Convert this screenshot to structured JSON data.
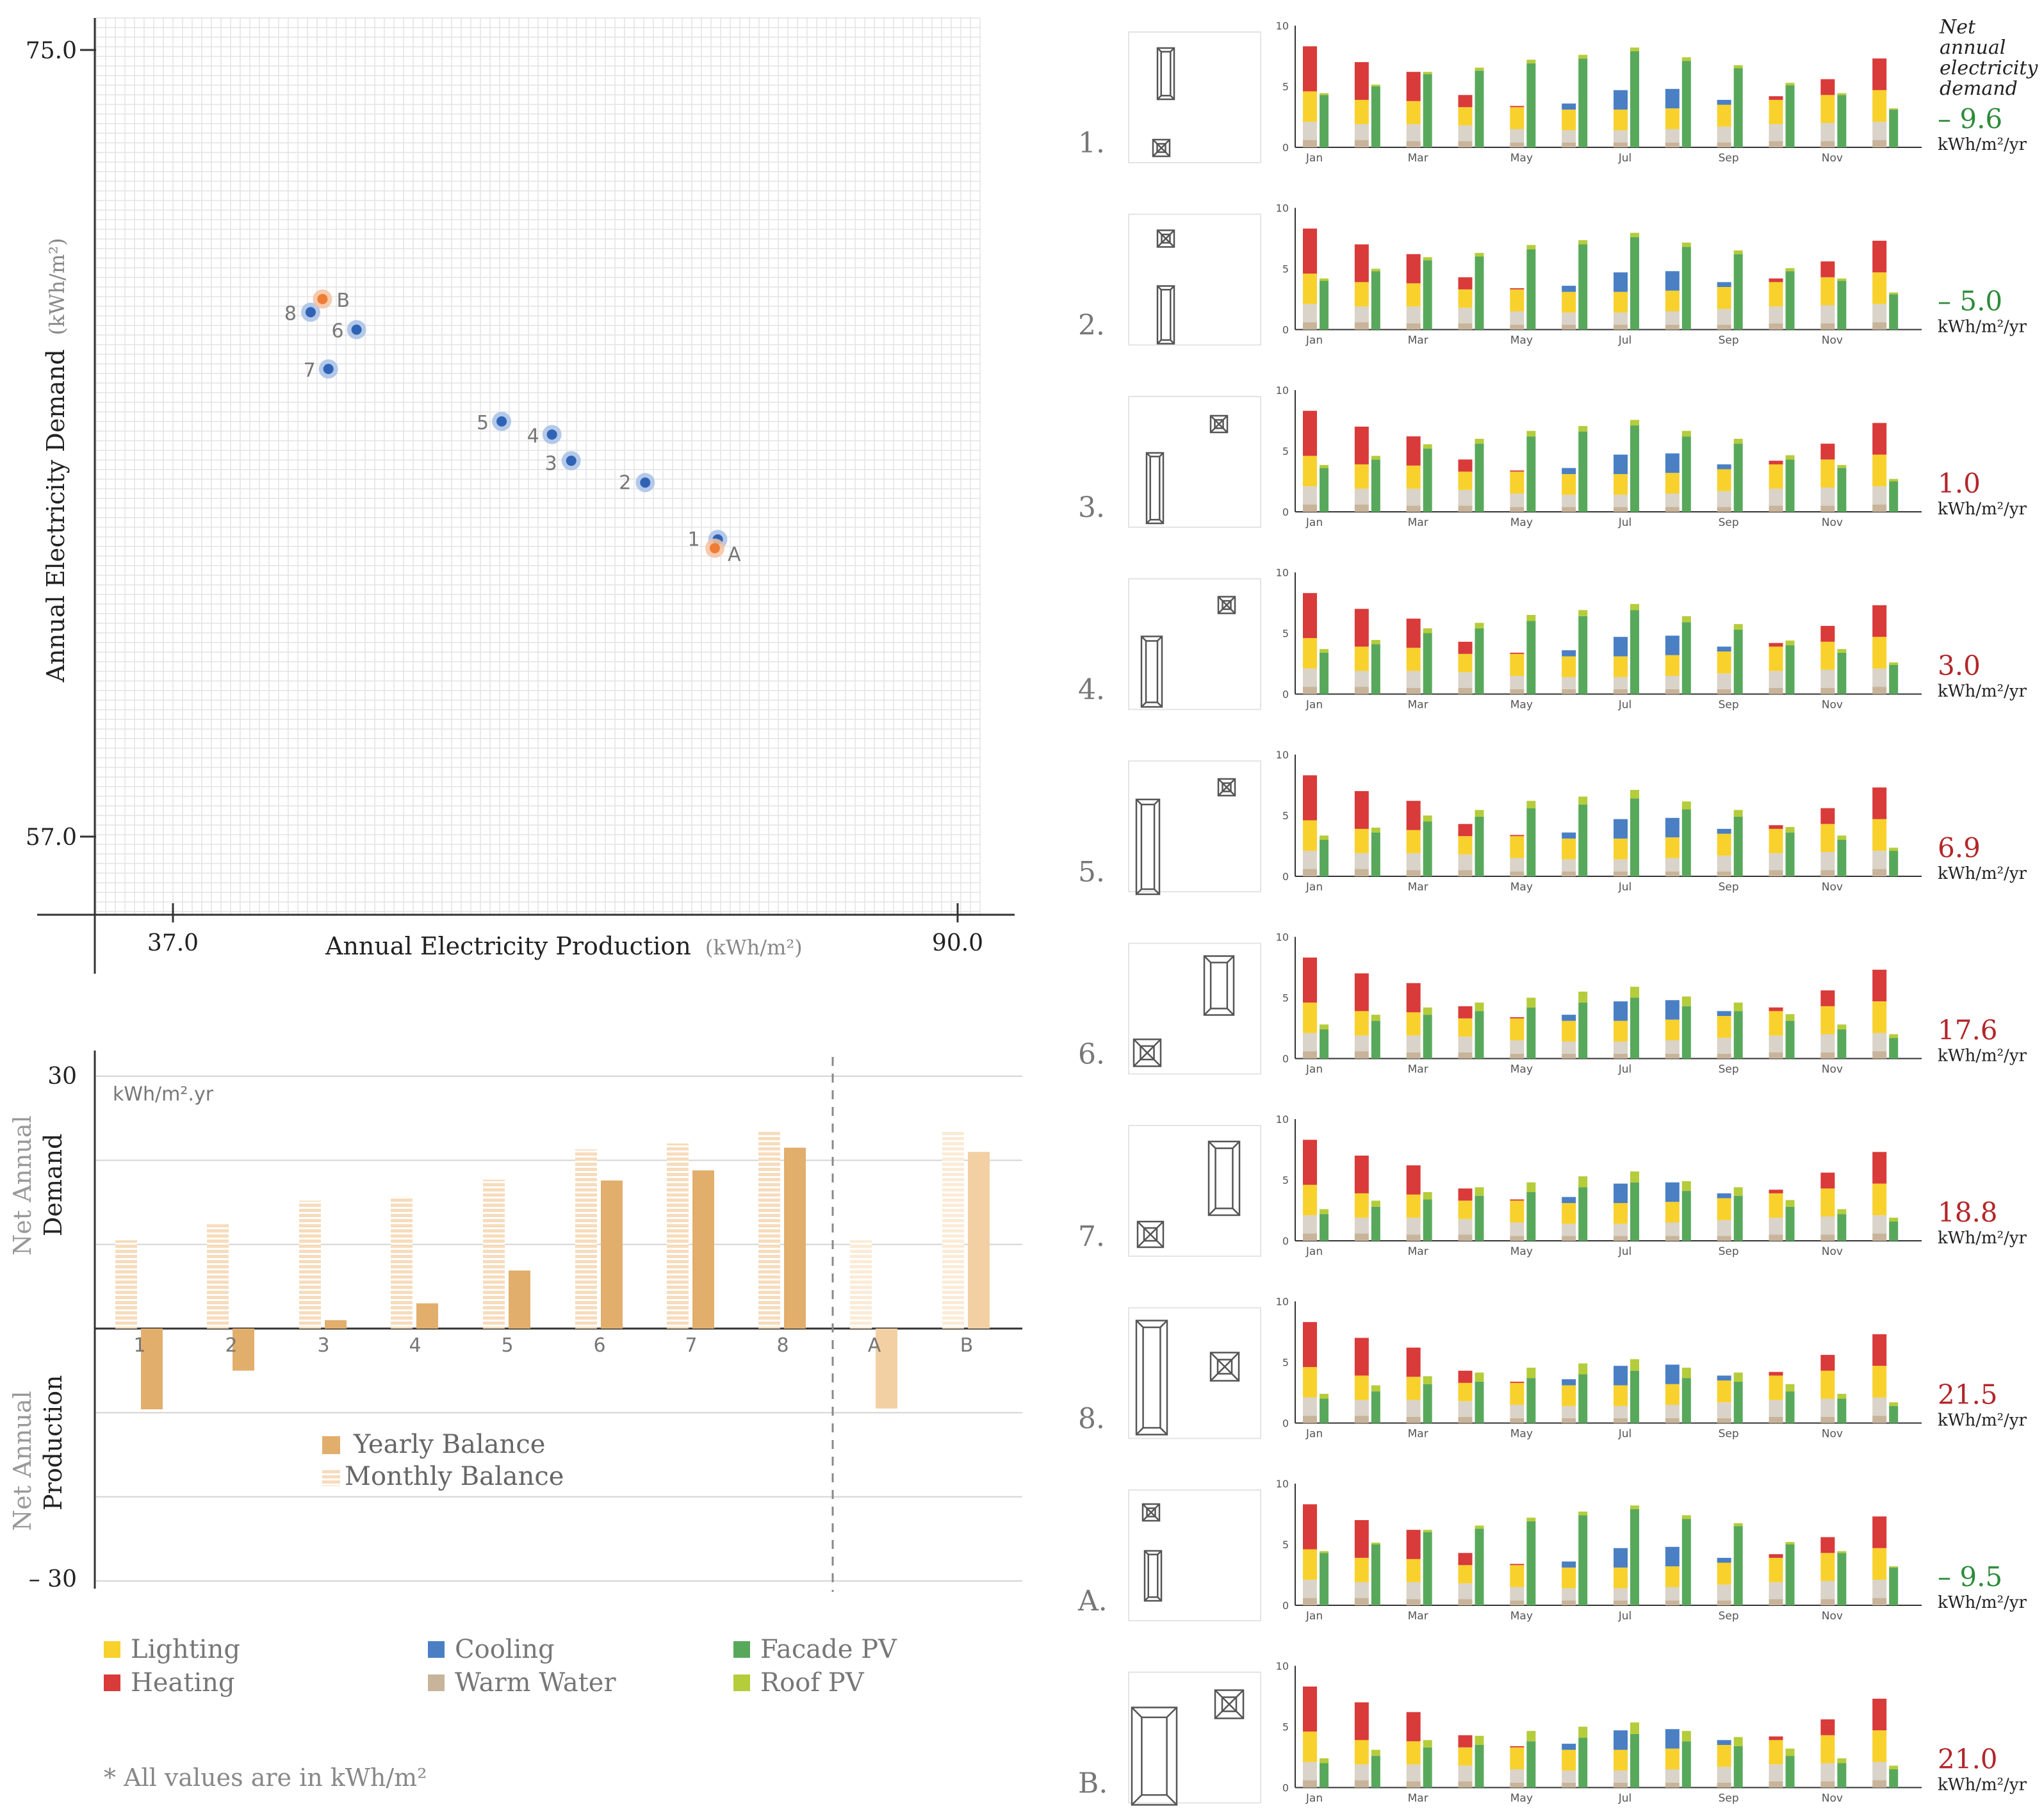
{
  "colors": {
    "lighting": "#f8d12d",
    "heating": "#d93a3a",
    "cooling": "#4a7fc4",
    "warm_water": "#c8b49a",
    "facade_pv": "#58a85c",
    "roof_pv": "#b5cc3b",
    "yearly": "#e2ae6b",
    "monthly": "#f3d0a4",
    "green_text": "#2e8b3a",
    "red_text": "#b3262a",
    "point_blue": "#2f63b5",
    "point_orange": "#ef7d36"
  },
  "chart_data": [
    {
      "type": "scatter",
      "title": "",
      "xlabel": "Annual Electricity Production",
      "xlabel_unit": "(kWh/m²)",
      "ylabel": "Annual Electricity Demand",
      "ylabel_unit": "(kWh/m²)",
      "xlim": [
        37.0,
        90.0
      ],
      "ylim": [
        57.0,
        75.0
      ],
      "x_ticks": [
        "37.0",
        "90.0"
      ],
      "y_ticks": [
        "75.0",
        "57.0"
      ],
      "grid": true,
      "points": [
        {
          "label": "1",
          "x": 73.8,
          "y": 63.8,
          "series": "variant"
        },
        {
          "label": "2",
          "x": 68.9,
          "y": 65.1,
          "series": "variant"
        },
        {
          "label": "3",
          "x": 63.9,
          "y": 65.6,
          "series": "variant"
        },
        {
          "label": "4",
          "x": 62.6,
          "y": 66.2,
          "series": "variant"
        },
        {
          "label": "5",
          "x": 59.2,
          "y": 66.5,
          "series": "variant"
        },
        {
          "label": "6",
          "x": 49.4,
          "y": 68.6,
          "series": "variant"
        },
        {
          "label": "7",
          "x": 47.5,
          "y": 67.7,
          "series": "variant"
        },
        {
          "label": "8",
          "x": 46.3,
          "y": 69.0,
          "series": "variant"
        },
        {
          "label": "A",
          "x": 73.6,
          "y": 63.6,
          "series": "reference"
        },
        {
          "label": "B",
          "x": 47.1,
          "y": 69.3,
          "series": "reference"
        }
      ]
    },
    {
      "type": "bar",
      "title": "kWh/m².yr",
      "ylim": [
        -30,
        30
      ],
      "y_ticks": [
        "30",
        "– 30"
      ],
      "ylabel_top": [
        "Net Annual",
        "Demand"
      ],
      "ylabel_bottom": [
        "Net Annual",
        "Production"
      ],
      "categories": [
        "1",
        "2",
        "3",
        "4",
        "5",
        "6",
        "7",
        "8",
        "A",
        "B"
      ],
      "series": [
        {
          "name": "Monthly Balance",
          "values": [
            10.5,
            12.4,
            15.2,
            15.7,
            17.7,
            21.3,
            22.0,
            23.5,
            10.5,
            23.5
          ]
        },
        {
          "name": "Yearly Balance",
          "values": [
            -9.6,
            -5.0,
            1.0,
            3.0,
            6.9,
            17.6,
            18.8,
            21.5,
            -9.5,
            21.0
          ]
        }
      ],
      "legend": [
        "Yearly Balance",
        "Monthly Balance"
      ]
    },
    {
      "type": "bar",
      "stacked": true,
      "months": [
        "Jan",
        "Feb",
        "Mar",
        "Apr",
        "May",
        "Jun",
        "Jul",
        "Aug",
        "Sep",
        "Oct",
        "Nov",
        "Dec"
      ],
      "month_labels": [
        "Jan",
        "Mar",
        "May",
        "Jul",
        "Sep",
        "Nov"
      ],
      "y_ticks": [
        "0",
        "5",
        "10"
      ],
      "ylim": [
        0,
        10
      ],
      "demand_base": {
        "warm_water": [
          0.6,
          0.6,
          0.5,
          0.5,
          0.4,
          0.4,
          0.4,
          0.4,
          0.4,
          0.5,
          0.5,
          0.6
        ],
        "lighting_gray": [
          1.5,
          1.3,
          1.4,
          1.3,
          1.1,
          1.0,
          1.0,
          1.1,
          1.3,
          1.4,
          1.5,
          1.5
        ],
        "lighting": [
          2.5,
          2.0,
          1.9,
          1.5,
          1.8,
          1.7,
          1.7,
          1.7,
          1.8,
          2.0,
          2.3,
          2.6
        ],
        "cooling": [
          0,
          0,
          0,
          0,
          0,
          0.5,
          1.6,
          1.6,
          0.4,
          0,
          0,
          0
        ],
        "heating": [
          3.7,
          3.1,
          2.4,
          1.0,
          0.1,
          0,
          0,
          0,
          0,
          0.3,
          1.3,
          2.6
        ]
      },
      "rows": [
        {
          "label": "1.",
          "value": "– 9.6",
          "unit": "kWh/m²/yr",
          "facade": [
            4.3,
            5.0,
            6.0,
            6.3,
            6.9,
            7.3,
            7.9,
            7.1,
            6.5,
            5.1,
            4.3,
            3.1
          ],
          "roof": [
            0.15,
            0.15,
            0.2,
            0.25,
            0.3,
            0.3,
            0.3,
            0.3,
            0.25,
            0.2,
            0.15,
            0.1
          ],
          "heading": [
            "Net",
            "annual",
            "electricity",
            "demand"
          ]
        },
        {
          "label": "2.",
          "value": "– 5.0",
          "unit": "kWh/m²/yr",
          "facade": [
            4.0,
            4.8,
            5.7,
            6.0,
            6.6,
            7.0,
            7.6,
            6.8,
            6.2,
            4.8,
            4.0,
            2.9
          ],
          "roof": [
            0.2,
            0.2,
            0.25,
            0.3,
            0.35,
            0.35,
            0.35,
            0.35,
            0.3,
            0.25,
            0.2,
            0.15
          ]
        },
        {
          "label": "3.",
          "value": "1.0",
          "unit": "kWh/m²/yr",
          "facade": [
            3.6,
            4.3,
            5.2,
            5.6,
            6.2,
            6.6,
            7.1,
            6.2,
            5.6,
            4.3,
            3.6,
            2.5
          ],
          "roof": [
            0.25,
            0.3,
            0.35,
            0.4,
            0.45,
            0.45,
            0.45,
            0.45,
            0.4,
            0.35,
            0.25,
            0.2
          ]
        },
        {
          "label": "4.",
          "value": "3.0",
          "unit": "kWh/m²/yr",
          "facade": [
            3.4,
            4.1,
            5.0,
            5.4,
            6.0,
            6.4,
            6.9,
            5.9,
            5.3,
            4.0,
            3.4,
            2.4
          ],
          "roof": [
            0.3,
            0.35,
            0.4,
            0.45,
            0.5,
            0.5,
            0.5,
            0.5,
            0.45,
            0.4,
            0.3,
            0.2
          ]
        },
        {
          "label": "5.",
          "value": "6.9",
          "unit": "kWh/m²/yr",
          "facade": [
            3.0,
            3.6,
            4.5,
            4.9,
            5.6,
            5.9,
            6.4,
            5.5,
            4.9,
            3.6,
            3.0,
            2.1
          ],
          "roof": [
            0.35,
            0.4,
            0.5,
            0.55,
            0.6,
            0.65,
            0.7,
            0.65,
            0.55,
            0.45,
            0.35,
            0.25
          ]
        },
        {
          "label": "6.",
          "value": "17.6",
          "unit": "kWh/m²/yr",
          "facade": [
            2.4,
            3.1,
            3.6,
            3.9,
            4.2,
            4.6,
            5.0,
            4.3,
            3.9,
            3.1,
            2.4,
            1.7
          ],
          "roof": [
            0.4,
            0.5,
            0.6,
            0.7,
            0.8,
            0.9,
            0.9,
            0.8,
            0.7,
            0.55,
            0.4,
            0.3
          ]
        },
        {
          "label": "7.",
          "value": "18.8",
          "unit": "kWh/m²/yr",
          "facade": [
            2.2,
            2.8,
            3.4,
            3.7,
            4.0,
            4.4,
            4.8,
            4.1,
            3.7,
            2.8,
            2.2,
            1.6
          ],
          "roof": [
            0.4,
            0.5,
            0.6,
            0.7,
            0.8,
            0.9,
            0.9,
            0.8,
            0.7,
            0.55,
            0.4,
            0.3
          ]
        },
        {
          "label": "8.",
          "value": "21.5",
          "unit": "kWh/m²/yr",
          "facade": [
            2.0,
            2.6,
            3.2,
            3.4,
            3.7,
            4.0,
            4.3,
            3.7,
            3.4,
            2.6,
            2.0,
            1.4
          ],
          "roof": [
            0.4,
            0.5,
            0.65,
            0.75,
            0.85,
            0.9,
            0.95,
            0.85,
            0.75,
            0.6,
            0.4,
            0.3
          ]
        },
        {
          "label": "A.",
          "value": "– 9.5",
          "unit": "kWh/m²/yr",
          "facade": [
            4.3,
            5.0,
            6.0,
            6.3,
            6.9,
            7.4,
            7.9,
            7.1,
            6.5,
            5.0,
            4.3,
            3.1
          ],
          "roof": [
            0.15,
            0.15,
            0.2,
            0.25,
            0.3,
            0.3,
            0.3,
            0.3,
            0.25,
            0.2,
            0.15,
            0.1
          ]
        },
        {
          "label": "B.",
          "value": "21.0",
          "unit": "kWh/m²/yr",
          "facade": [
            2.0,
            2.6,
            3.3,
            3.5,
            3.8,
            4.1,
            4.4,
            3.8,
            3.4,
            2.6,
            2.0,
            1.5
          ],
          "roof": [
            0.4,
            0.5,
            0.6,
            0.75,
            0.85,
            0.9,
            0.95,
            0.85,
            0.75,
            0.6,
            0.4,
            0.3
          ]
        }
      ]
    }
  ],
  "legend": {
    "items": [
      {
        "name": "Lighting",
        "color_key": "lighting"
      },
      {
        "name": "Cooling",
        "color_key": "cooling"
      },
      {
        "name": "Facade PV",
        "color_key": "facade_pv"
      },
      {
        "name": "Heating",
        "color_key": "heating"
      },
      {
        "name": "Warm Water",
        "color_key": "warm_water"
      },
      {
        "name": "Roof PV",
        "color_key": "roof_pv"
      }
    ],
    "footnote": "* All values are in kWh/m²"
  }
}
